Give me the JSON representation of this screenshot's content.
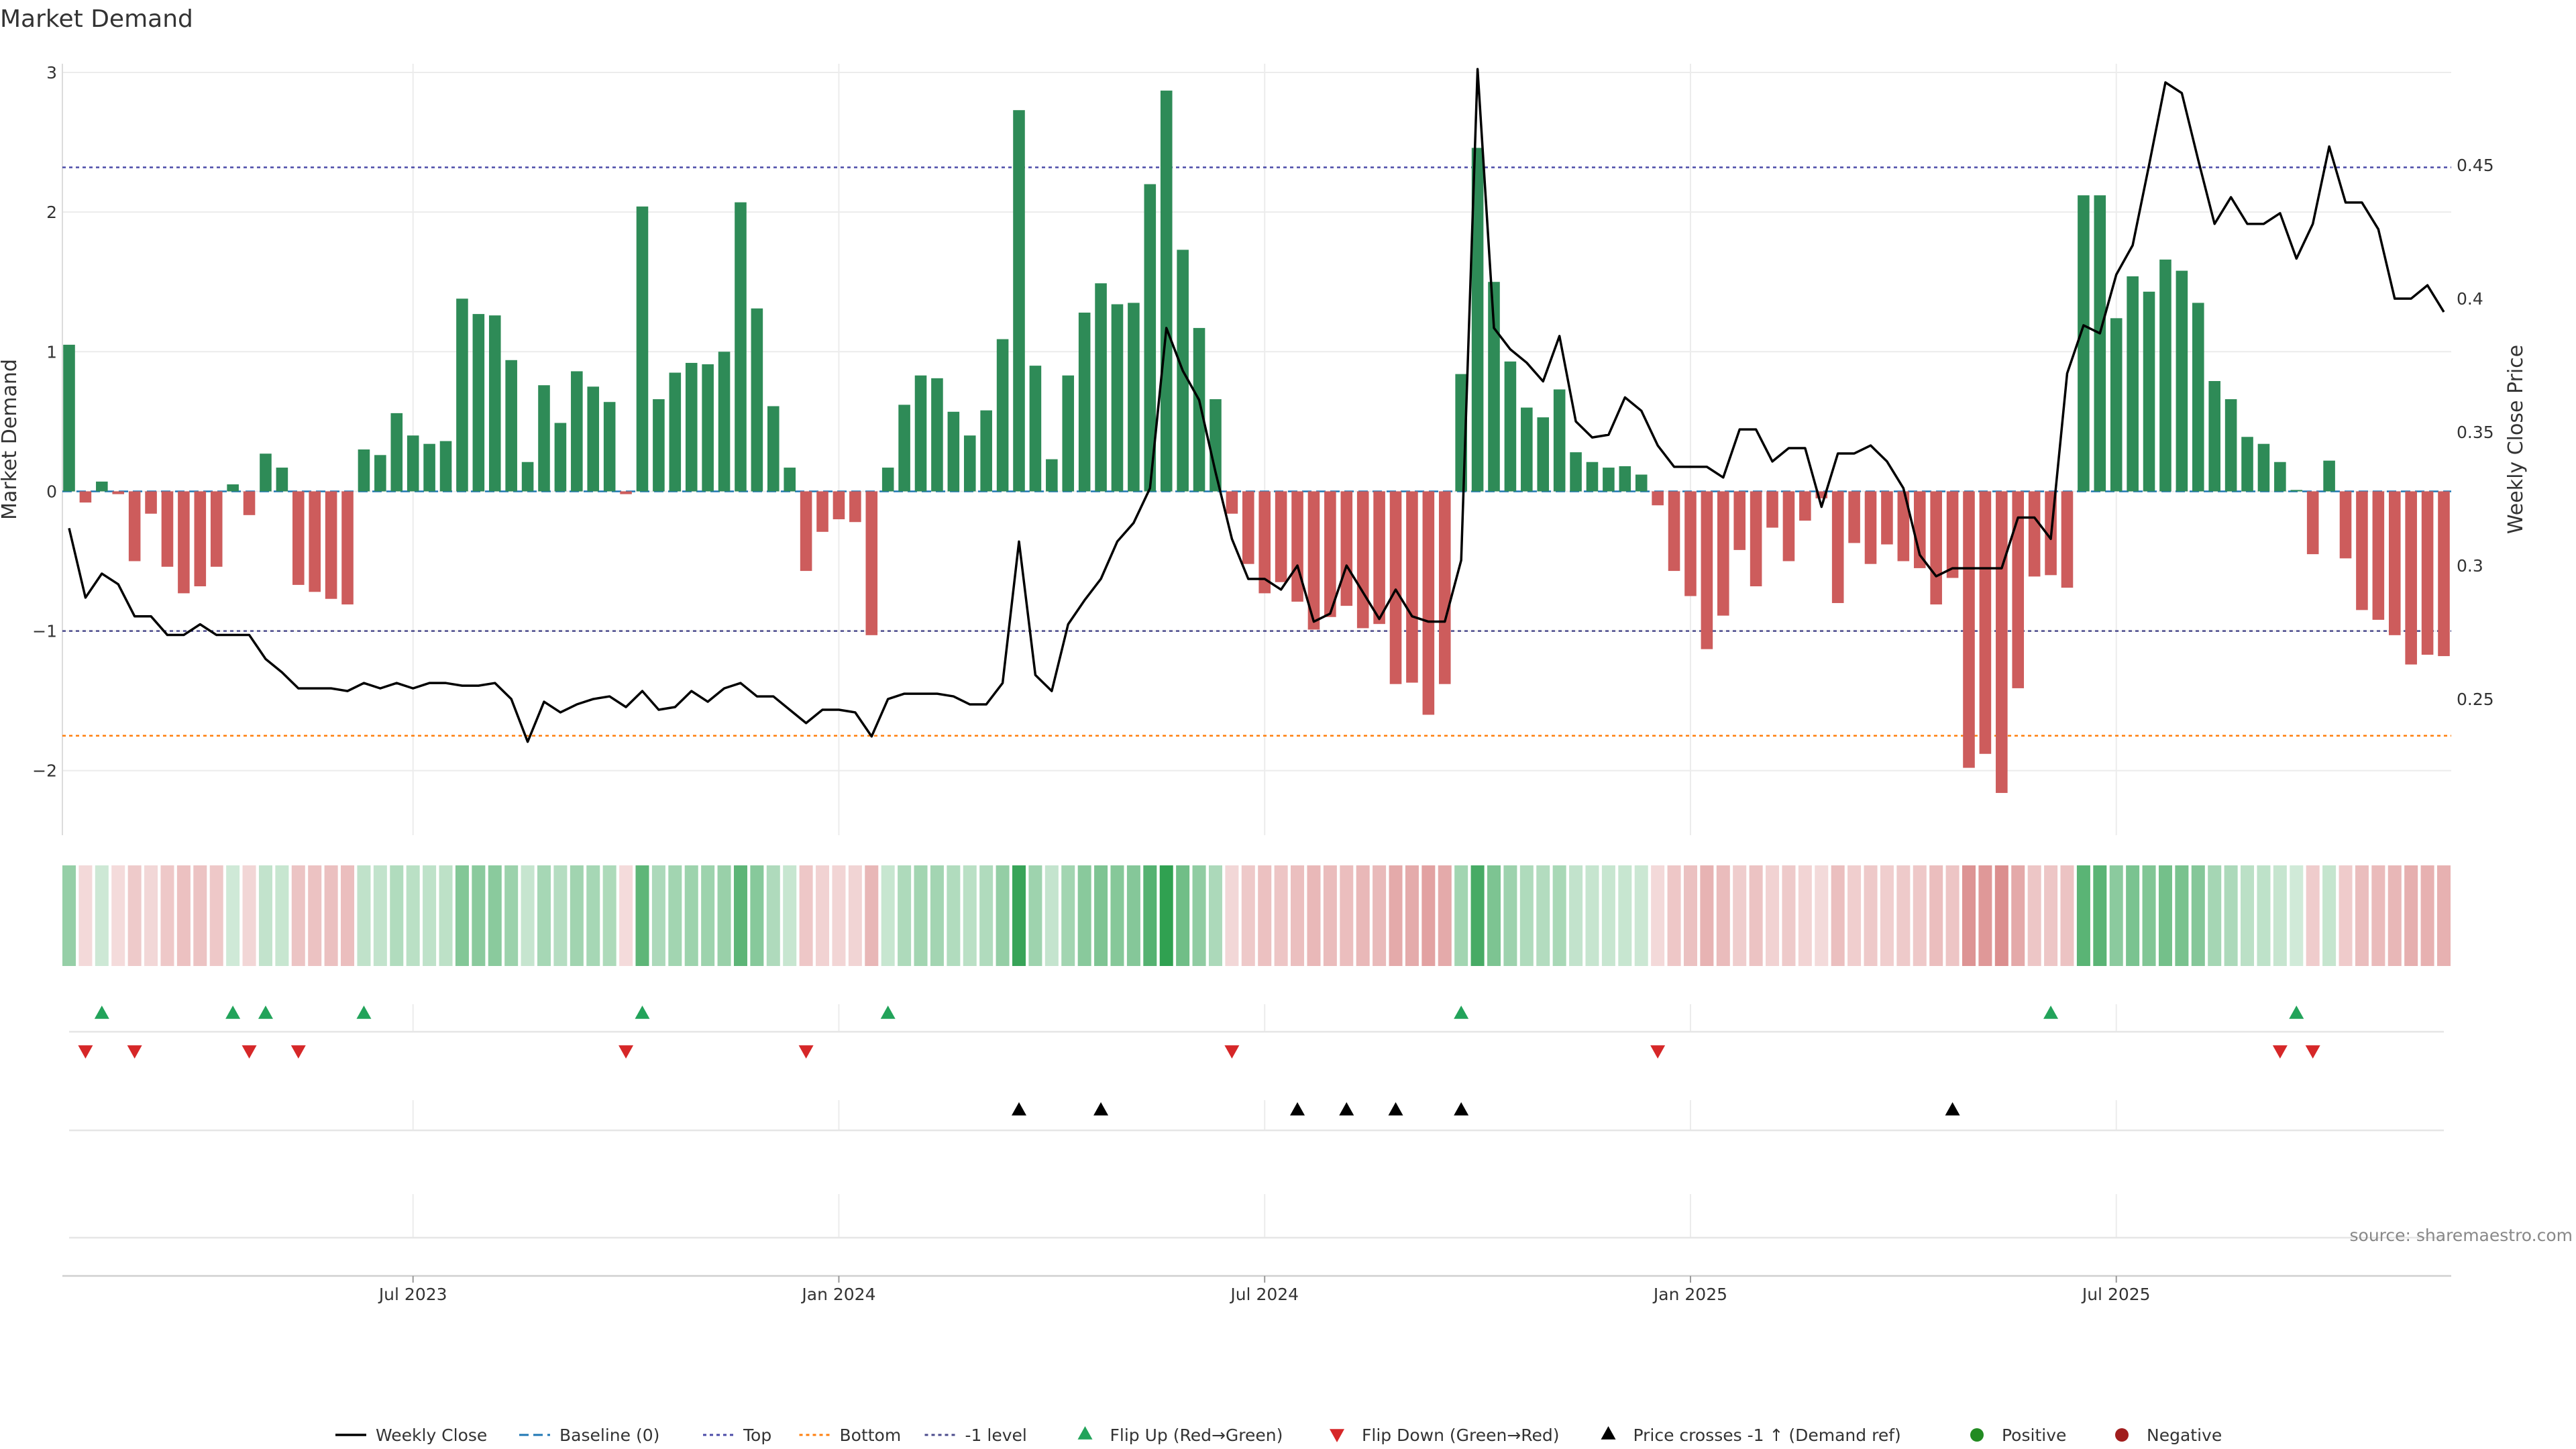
{
  "title": "Market Demand",
  "source_note": "source: sharemaestro.com",
  "colors": {
    "positive": "#2e8b57",
    "negative": "#cd5c5c",
    "price_line": "#000000",
    "baseline": "#1f77b4",
    "top_line": "#4b4ba8",
    "bottom_line": "#ff7f0e",
    "minus1_line": "#4b4b8c",
    "flip_up": "#22a35a",
    "flip_down": "#d62728",
    "cross_marker": "#000000",
    "pos_dot": "#228b22",
    "neg_dot": "#a11d1d"
  },
  "chart_data": {
    "type": "bar+line",
    "x_axis": {
      "tick_labels": [
        "Jul 2023",
        "Jan 2024",
        "Jul 2024",
        "Jan 2025",
        "Jul 2025"
      ],
      "tick_weeks": [
        21,
        47,
        73,
        99,
        125
      ]
    },
    "left_axis": {
      "label": "Market Demand",
      "range": [
        -2.4,
        3.0
      ],
      "ticks": [
        3,
        2,
        1,
        0,
        -1,
        -2
      ],
      "tick_labels": [
        "3",
        "2",
        "1",
        "0",
        "−1",
        "−2"
      ]
    },
    "right_axis": {
      "label": "Weekly Close Price",
      "range": [
        0.199,
        0.488
      ],
      "ticks": [
        0.45,
        0.4,
        0.35,
        0.3,
        0.25
      ],
      "tick_labels": [
        "0.45",
        "0.4",
        "0.35",
        "0.3",
        "0.25"
      ]
    },
    "reference_lines": {
      "baseline": 0,
      "top": 2.32,
      "bottom": -1.75,
      "minus1": -1.0
    },
    "demand": [
      1.05,
      -0.08,
      0.07,
      -0.02,
      -0.5,
      -0.16,
      -0.54,
      -0.73,
      -0.68,
      -0.54,
      0.05,
      -0.17,
      0.27,
      0.17,
      -0.67,
      -0.72,
      -0.77,
      -0.81,
      0.3,
      0.26,
      0.56,
      0.4,
      0.34,
      0.36,
      1.38,
      1.27,
      1.26,
      0.94,
      0.21,
      0.76,
      0.49,
      0.86,
      0.75,
      0.64,
      -0.02,
      2.04,
      0.66,
      0.85,
      0.92,
      0.91,
      1.0,
      2.07,
      1.31,
      0.61,
      0.17,
      -0.57,
      -0.29,
      -0.2,
      -0.22,
      -1.03,
      0.17,
      0.62,
      0.83,
      0.81,
      0.57,
      0.4,
      0.58,
      1.09,
      2.73,
      0.9,
      0.23,
      0.83,
      1.28,
      1.49,
      1.34,
      1.35,
      2.2,
      2.87,
      1.73,
      1.17,
      0.66,
      -0.16,
      -0.52,
      -0.73,
      -0.65,
      -0.79,
      -0.99,
      -0.9,
      -0.82,
      -0.98,
      -0.95,
      -1.38,
      -1.37,
      -1.6,
      -1.38,
      0.84,
      2.46,
      1.5,
      0.93,
      0.6,
      0.53,
      0.73,
      0.28,
      0.21,
      0.17,
      0.18,
      0.12,
      -0.1,
      -0.57,
      -0.75,
      -1.13,
      -0.89,
      -0.42,
      -0.68,
      -0.26,
      -0.5,
      -0.21,
      -0.05,
      -0.8,
      -0.37,
      -0.52,
      -0.38,
      -0.5,
      -0.55,
      -0.81,
      -0.62,
      -1.98,
      -1.88,
      -2.16,
      -1.41,
      -0.61,
      -0.6,
      -0.69,
      2.12,
      2.12,
      1.24,
      1.54,
      1.43,
      1.66,
      1.58,
      1.35,
      0.79,
      0.66,
      0.39,
      0.34,
      0.21,
      0.01,
      -0.45,
      0.22,
      -0.48,
      -0.85,
      -0.92,
      -1.03,
      -1.24,
      -1.17,
      -1.18
    ],
    "close": [
      0.314,
      0.288,
      0.297,
      0.293,
      0.281,
      0.281,
      0.274,
      0.274,
      0.278,
      0.274,
      0.274,
      0.274,
      0.265,
      0.26,
      0.254,
      0.254,
      0.254,
      0.253,
      0.256,
      0.254,
      0.256,
      0.254,
      0.256,
      0.256,
      0.255,
      0.255,
      0.256,
      0.25,
      0.234,
      0.249,
      0.245,
      0.248,
      0.25,
      0.251,
      0.247,
      0.253,
      0.246,
      0.247,
      0.253,
      0.249,
      0.254,
      0.256,
      0.251,
      0.251,
      0.246,
      0.241,
      0.246,
      0.246,
      0.245,
      0.236,
      0.25,
      0.252,
      0.252,
      0.252,
      0.251,
      0.248,
      0.248,
      0.256,
      0.309,
      0.259,
      0.253,
      0.278,
      0.287,
      0.295,
      0.309,
      0.316,
      0.329,
      0.389,
      0.373,
      0.362,
      0.335,
      0.31,
      0.295,
      0.295,
      0.291,
      0.3,
      0.279,
      0.282,
      0.3,
      0.29,
      0.28,
      0.291,
      0.281,
      0.279,
      0.279,
      0.302,
      0.486,
      0.389,
      0.381,
      0.376,
      0.369,
      0.386,
      0.354,
      0.348,
      0.349,
      0.363,
      0.358,
      0.345,
      0.337,
      0.337,
      0.337,
      0.333,
      0.351,
      0.351,
      0.339,
      0.344,
      0.344,
      0.322,
      0.342,
      0.342,
      0.345,
      0.339,
      0.329,
      0.304,
      0.296,
      0.299,
      0.299,
      0.299,
      0.299,
      0.318,
      0.318,
      0.31,
      0.372,
      0.39,
      0.387,
      0.409,
      0.42,
      0.45,
      0.481,
      0.477,
      0.452,
      0.428,
      0.438,
      0.428,
      0.428,
      0.432,
      0.415,
      0.428,
      0.457,
      0.436,
      0.436,
      0.426,
      0.4,
      0.4,
      0.405,
      0.395
    ],
    "heat_strip": "Weekly demand coloured green (positive) / red (negative), intensity by magnitude",
    "markers": {
      "flip_up_weeks": [
        2,
        10,
        12,
        18,
        35,
        50,
        85,
        121,
        136
      ],
      "flip_down_weeks": [
        1,
        4,
        11,
        14,
        34,
        45,
        71,
        97,
        135,
        137
      ],
      "price_cross_weeks": [
        58,
        63,
        75,
        78,
        81,
        85,
        115
      ]
    }
  },
  "legend": [
    {
      "label": "Weekly Close",
      "kind": "line-solid",
      "color": "#000000"
    },
    {
      "label": "Baseline (0)",
      "kind": "line-dash",
      "color": "#1f77b4"
    },
    {
      "label": "Top",
      "kind": "line-dot",
      "color": "#4b4ba8"
    },
    {
      "label": "Bottom",
      "kind": "line-dot",
      "color": "#ff7f0e"
    },
    {
      "label": "-1 level",
      "kind": "line-dot",
      "color": "#4b4b8c"
    },
    {
      "label": "Flip Up (Red→Green)",
      "kind": "tri-up",
      "color": "#22a35a"
    },
    {
      "label": "Flip Down (Green→Red)",
      "kind": "tri-down",
      "color": "#d62728"
    },
    {
      "label": "Price crosses -1 ↑ (Demand ref)",
      "kind": "tri-up",
      "color": "#000000"
    },
    {
      "label": "Positive",
      "kind": "dot",
      "color": "#228b22"
    },
    {
      "label": "Negative",
      "kind": "dot",
      "color": "#a11d1d"
    }
  ]
}
